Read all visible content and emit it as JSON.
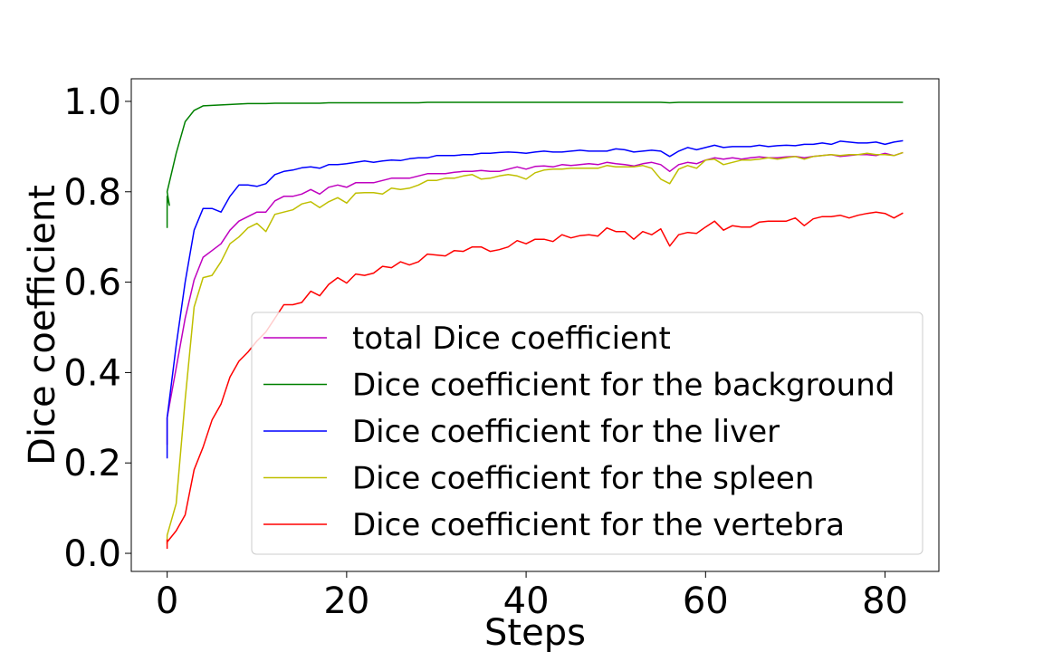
{
  "chart_data": {
    "type": "line",
    "xlabel": "Steps",
    "ylabel": "Dice coefficient",
    "xlim": [
      -4,
      86
    ],
    "ylim": [
      -0.04,
      1.05
    ],
    "xticks": [
      0,
      20,
      40,
      60,
      80
    ],
    "yticks": [
      0.0,
      0.2,
      0.4,
      0.6,
      0.8,
      1.0
    ],
    "xtick_labels": [
      "0",
      "20",
      "40",
      "60",
      "80"
    ],
    "ytick_labels": [
      "0.0",
      "0.2",
      "0.4",
      "0.6",
      "0.8",
      "1.0"
    ],
    "grid": false,
    "legend_position": "lower-right",
    "x": [
      0,
      1,
      2,
      3,
      4,
      5,
      6,
      7,
      8,
      9,
      10,
      11,
      12,
      13,
      14,
      15,
      16,
      17,
      18,
      19,
      20,
      21,
      22,
      23,
      24,
      25,
      26,
      27,
      28,
      29,
      30,
      31,
      32,
      33,
      34,
      35,
      36,
      37,
      38,
      39,
      40,
      41,
      42,
      43,
      44,
      45,
      46,
      47,
      48,
      49,
      50,
      51,
      52,
      53,
      54,
      55,
      56,
      57,
      58,
      59,
      60,
      61,
      62,
      63,
      64,
      65,
      66,
      67,
      68,
      69,
      70,
      71,
      72,
      73,
      74,
      75,
      76,
      77,
      78,
      79,
      80,
      81,
      82
    ],
    "series": [
      {
        "name": "total Dice coefficient",
        "color": "#bf00bf",
        "pre": [
          [
            0,
            0.24
          ],
          [
            0,
            0.28
          ]
        ],
        "values": [
          0.3,
          0.41,
          0.52,
          0.605,
          0.655,
          0.67,
          0.685,
          0.715,
          0.735,
          0.745,
          0.755,
          0.755,
          0.78,
          0.79,
          0.79,
          0.795,
          0.805,
          0.795,
          0.81,
          0.815,
          0.81,
          0.82,
          0.82,
          0.82,
          0.825,
          0.83,
          0.83,
          0.83,
          0.835,
          0.84,
          0.84,
          0.84,
          0.843,
          0.845,
          0.845,
          0.847,
          0.845,
          0.845,
          0.85,
          0.855,
          0.85,
          0.856,
          0.857,
          0.855,
          0.86,
          0.858,
          0.86,
          0.862,
          0.86,
          0.865,
          0.862,
          0.86,
          0.857,
          0.862,
          0.865,
          0.86,
          0.845,
          0.86,
          0.865,
          0.862,
          0.87,
          0.875,
          0.872,
          0.875,
          0.872,
          0.875,
          0.877,
          0.875,
          0.875,
          0.877,
          0.878,
          0.875,
          0.878,
          0.88,
          0.882,
          0.878,
          0.88,
          0.882,
          0.882,
          0.88,
          0.885,
          0.88,
          0.887
        ]
      },
      {
        "name": "Dice coefficient for the background",
        "color": "#008000",
        "pre": [
          [
            0,
            0.72
          ],
          [
            0,
            0.79
          ],
          [
            0.25,
            0.77
          ]
        ],
        "values": [
          0.8,
          0.885,
          0.955,
          0.98,
          0.99,
          0.991,
          0.992,
          0.993,
          0.994,
          0.995,
          0.995,
          0.995,
          0.996,
          0.996,
          0.996,
          0.996,
          0.996,
          0.996,
          0.997,
          0.997,
          0.997,
          0.997,
          0.997,
          0.997,
          0.997,
          0.997,
          0.997,
          0.997,
          0.997,
          0.998,
          0.998,
          0.998,
          0.998,
          0.998,
          0.998,
          0.998,
          0.998,
          0.998,
          0.998,
          0.998,
          0.998,
          0.998,
          0.998,
          0.998,
          0.998,
          0.998,
          0.998,
          0.998,
          0.998,
          0.998,
          0.998,
          0.998,
          0.998,
          0.998,
          0.998,
          0.998,
          0.997,
          0.998,
          0.998,
          0.998,
          0.998,
          0.998,
          0.998,
          0.998,
          0.998,
          0.998,
          0.998,
          0.998,
          0.998,
          0.998,
          0.998,
          0.998,
          0.998,
          0.998,
          0.998,
          0.998,
          0.998,
          0.998,
          0.998,
          0.998,
          0.998,
          0.998,
          0.998
        ]
      },
      {
        "name": "Dice coefficient for the liver",
        "color": "#0000ff",
        "pre": [
          [
            0,
            0.21
          ],
          [
            0,
            0.29
          ]
        ],
        "values": [
          0.3,
          0.46,
          0.6,
          0.715,
          0.763,
          0.763,
          0.755,
          0.79,
          0.815,
          0.815,
          0.812,
          0.818,
          0.838,
          0.845,
          0.848,
          0.853,
          0.855,
          0.852,
          0.86,
          0.86,
          0.862,
          0.865,
          0.868,
          0.865,
          0.868,
          0.87,
          0.869,
          0.873,
          0.875,
          0.875,
          0.88,
          0.88,
          0.88,
          0.882,
          0.882,
          0.885,
          0.885,
          0.887,
          0.888,
          0.887,
          0.885,
          0.888,
          0.89,
          0.888,
          0.888,
          0.89,
          0.892,
          0.89,
          0.89,
          0.89,
          0.895,
          0.893,
          0.888,
          0.89,
          0.892,
          0.89,
          0.878,
          0.89,
          0.898,
          0.893,
          0.898,
          0.903,
          0.898,
          0.9,
          0.9,
          0.9,
          0.903,
          0.9,
          0.902,
          0.903,
          0.902,
          0.905,
          0.905,
          0.908,
          0.905,
          0.912,
          0.91,
          0.908,
          0.908,
          0.91,
          0.905,
          0.91,
          0.913
        ]
      },
      {
        "name": "Dice coefficient for the spleen",
        "color": "#bfbf00",
        "pre": [
          [
            0,
            0.02
          ],
          [
            0,
            0.04
          ]
        ],
        "values": [
          0.04,
          0.11,
          0.34,
          0.545,
          0.61,
          0.615,
          0.645,
          0.685,
          0.7,
          0.72,
          0.73,
          0.712,
          0.75,
          0.755,
          0.76,
          0.773,
          0.778,
          0.765,
          0.778,
          0.787,
          0.775,
          0.797,
          0.798,
          0.798,
          0.795,
          0.808,
          0.805,
          0.808,
          0.815,
          0.825,
          0.825,
          0.83,
          0.83,
          0.835,
          0.838,
          0.828,
          0.83,
          0.835,
          0.838,
          0.835,
          0.828,
          0.842,
          0.848,
          0.85,
          0.85,
          0.852,
          0.852,
          0.852,
          0.852,
          0.858,
          0.855,
          0.855,
          0.855,
          0.858,
          0.852,
          0.828,
          0.818,
          0.85,
          0.858,
          0.852,
          0.87,
          0.872,
          0.86,
          0.865,
          0.87,
          0.87,
          0.872,
          0.875,
          0.872,
          0.875,
          0.878,
          0.872,
          0.878,
          0.88,
          0.882,
          0.88,
          0.882,
          0.882,
          0.885,
          0.882,
          0.882,
          0.88,
          0.887
        ]
      },
      {
        "name": "Dice coefficient for the vertebra",
        "color": "#ff0000",
        "pre": [
          [
            0,
            0.01
          ],
          [
            0,
            0.03
          ]
        ],
        "values": [
          0.025,
          0.05,
          0.085,
          0.185,
          0.235,
          0.295,
          0.33,
          0.39,
          0.425,
          0.445,
          0.47,
          0.49,
          0.52,
          0.55,
          0.55,
          0.555,
          0.58,
          0.57,
          0.595,
          0.61,
          0.598,
          0.618,
          0.615,
          0.62,
          0.635,
          0.632,
          0.645,
          0.638,
          0.645,
          0.662,
          0.66,
          0.658,
          0.67,
          0.668,
          0.678,
          0.678,
          0.668,
          0.672,
          0.678,
          0.692,
          0.685,
          0.695,
          0.695,
          0.69,
          0.705,
          0.698,
          0.703,
          0.705,
          0.702,
          0.72,
          0.712,
          0.712,
          0.695,
          0.712,
          0.705,
          0.718,
          0.68,
          0.705,
          0.71,
          0.708,
          0.722,
          0.735,
          0.715,
          0.725,
          0.722,
          0.722,
          0.733,
          0.735,
          0.735,
          0.735,
          0.742,
          0.725,
          0.74,
          0.745,
          0.745,
          0.748,
          0.742,
          0.748,
          0.752,
          0.755,
          0.752,
          0.742,
          0.753
        ]
      }
    ]
  }
}
